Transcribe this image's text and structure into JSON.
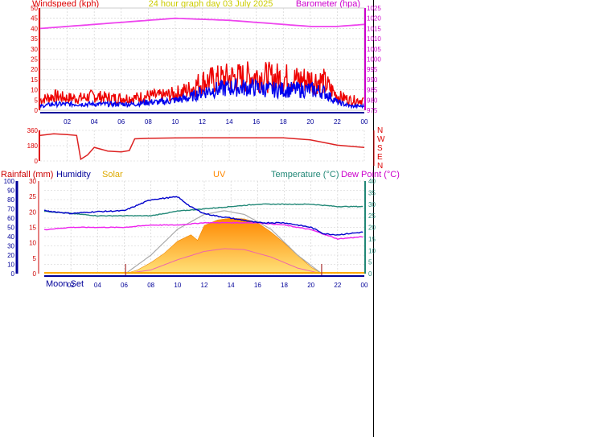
{
  "title": "24 hour graph day  03 July 2025",
  "colors": {
    "wind_avg": "#0000ee",
    "wind_gust": "#ee0000",
    "barometer": "#ee44ee",
    "direction": "#dd2222",
    "humidity": "#0000cc",
    "temperature": "#228877",
    "dewpoint": "#ee22ee",
    "solar": "#ff9900",
    "uv": "#ddaa00",
    "rain": "#cc0000",
    "axis_left": "#dd0000",
    "axis_right": "#cc00cc",
    "time_axis": "#000099",
    "grid": "#cccccc"
  },
  "chart_data": [
    {
      "id": "wind_pressure",
      "type": "line",
      "x_ticks": [
        "02",
        "04",
        "06",
        "08",
        "10",
        "12",
        "14",
        "16",
        "18",
        "20",
        "22",
        "00"
      ],
      "left_axis": {
        "label": "Windspeed (kph)",
        "ticks": [
          0,
          5,
          10,
          15,
          20,
          25,
          30,
          35,
          40,
          45,
          50
        ],
        "ylim": [
          0,
          50
        ]
      },
      "right_axis": {
        "label": "Barometer (hpa)",
        "ticks": [
          975,
          980,
          985,
          990,
          995,
          1000,
          1005,
          1010,
          1015,
          1020,
          1025
        ],
        "ylim": [
          975,
          1025
        ]
      },
      "series": [
        {
          "name": "Barometer",
          "axis": "right",
          "x": [
            0,
            2,
            4,
            6,
            8,
            10,
            12,
            14,
            16,
            18,
            20,
            22,
            24
          ],
          "y": [
            1015,
            1016,
            1017,
            1018,
            1019,
            1020,
            1019.5,
            1019,
            1018,
            1017,
            1016,
            1016,
            1017
          ]
        },
        {
          "name": "Gust",
          "axis": "left",
          "x": [
            0,
            1,
            2,
            3,
            4,
            5,
            6,
            7,
            8,
            9,
            10,
            11,
            12,
            13,
            14,
            15,
            16,
            17,
            18,
            19,
            20,
            21,
            22,
            23,
            24
          ],
          "y": [
            5,
            7,
            6,
            6,
            7,
            6,
            6,
            6,
            7,
            7,
            8,
            10,
            14,
            15,
            16,
            16,
            17,
            16,
            16,
            15,
            15,
            14,
            7,
            5,
            5
          ]
        },
        {
          "name": "Average",
          "axis": "left",
          "x": [
            0,
            1,
            2,
            3,
            4,
            5,
            6,
            7,
            8,
            9,
            10,
            11,
            12,
            13,
            14,
            15,
            16,
            17,
            18,
            19,
            20,
            21,
            22,
            23,
            24
          ],
          "y": [
            2,
            3,
            3,
            3,
            3,
            3,
            3,
            3,
            4,
            4,
            5,
            6,
            9,
            10,
            11,
            11,
            11,
            10,
            10,
            10,
            10,
            9,
            4,
            2,
            2
          ]
        }
      ]
    },
    {
      "id": "wind_direction",
      "type": "line",
      "left_axis": {
        "ticks": [
          0,
          180,
          360
        ],
        "ylim": [
          0,
          360
        ]
      },
      "right_axis": {
        "labels": [
          "N",
          "W",
          "S",
          "E",
          "N"
        ]
      },
      "series": [
        {
          "name": "Direction",
          "x": [
            0,
            1,
            2,
            2.7,
            3.0,
            3.5,
            4,
            5,
            6,
            6.6,
            7,
            8,
            10,
            12,
            14,
            16,
            18,
            20,
            22,
            24
          ],
          "y": [
            300,
            320,
            310,
            300,
            20,
            70,
            160,
            120,
            110,
            120,
            260,
            265,
            270,
            275,
            275,
            275,
            270,
            250,
            190,
            160
          ]
        }
      ]
    },
    {
      "id": "climate",
      "type": "line",
      "x_ticks": [
        "02",
        "04",
        "06",
        "08",
        "10",
        "12",
        "14",
        "16",
        "18",
        "20",
        "22",
        "00"
      ],
      "moon_label": "Moon Set",
      "header_labels": {
        "rainfall": "Rainfall (mm)",
        "humidity": "Humidity",
        "solar": "Solar",
        "uv": "UV",
        "temperature": "Temperature (°C)",
        "dewpoint": "Dew Point (°C)"
      },
      "humidity_axis": {
        "ticks": [
          0,
          10,
          20,
          30,
          40,
          50,
          60,
          70,
          80,
          90,
          100
        ],
        "ylim": [
          0,
          100
        ]
      },
      "rain_axis": {
        "ticks": [
          0,
          5,
          10,
          15,
          20,
          25,
          30
        ],
        "ylim": [
          0,
          30
        ]
      },
      "temp_axis": {
        "ticks": [
          0,
          5,
          10,
          15,
          20,
          25,
          30,
          35,
          40
        ],
        "ylim": [
          0,
          40
        ]
      },
      "sunrise_hour": 6.1,
      "sunset_hour": 20.8,
      "series": [
        {
          "name": "Temperature",
          "x": [
            0,
            2,
            4,
            6,
            8,
            10,
            12,
            14,
            16,
            18,
            20,
            22,
            24
          ],
          "y": [
            27,
            26,
            25,
            25,
            25,
            27,
            28,
            29,
            30,
            30,
            30,
            29,
            29
          ]
        },
        {
          "name": "Humidity",
          "x": [
            0,
            2,
            4,
            6,
            8,
            10,
            11,
            12,
            13,
            14,
            16,
            18,
            20,
            21,
            22,
            24
          ],
          "y": [
            68,
            65,
            67,
            68,
            80,
            83,
            72,
            65,
            62,
            60,
            55,
            55,
            50,
            43,
            42,
            45
          ]
        },
        {
          "name": "Dew Point",
          "x": [
            0,
            2,
            4,
            6,
            8,
            10,
            12,
            14,
            16,
            18,
            20,
            22,
            24
          ],
          "y": [
            19,
            20,
            20,
            20,
            21,
            21,
            22,
            22,
            22,
            21,
            19,
            15,
            16
          ]
        },
        {
          "name": "Solar",
          "x": [
            6.1,
            7,
            8,
            9,
            10,
            11,
            11.5,
            12,
            13,
            14,
            15,
            16,
            17,
            18,
            19,
            20,
            20.8
          ],
          "y": [
            0,
            4,
            12,
            22,
            35,
            42,
            36,
            52,
            58,
            60,
            59,
            55,
            45,
            33,
            20,
            7,
            0
          ]
        },
        {
          "name": "Solar max",
          "x": [
            6.1,
            8,
            10,
            12,
            13.5,
            15,
            17,
            19,
            20.8
          ],
          "y": [
            0,
            20,
            48,
            64,
            68,
            64,
            48,
            20,
            0
          ]
        },
        {
          "name": "UV",
          "x": [
            6.1,
            8,
            10,
            12,
            13.5,
            15,
            17,
            19,
            20.8
          ],
          "y": [
            0,
            4,
            15,
            24,
            27,
            26,
            18,
            6,
            0
          ]
        }
      ]
    }
  ]
}
